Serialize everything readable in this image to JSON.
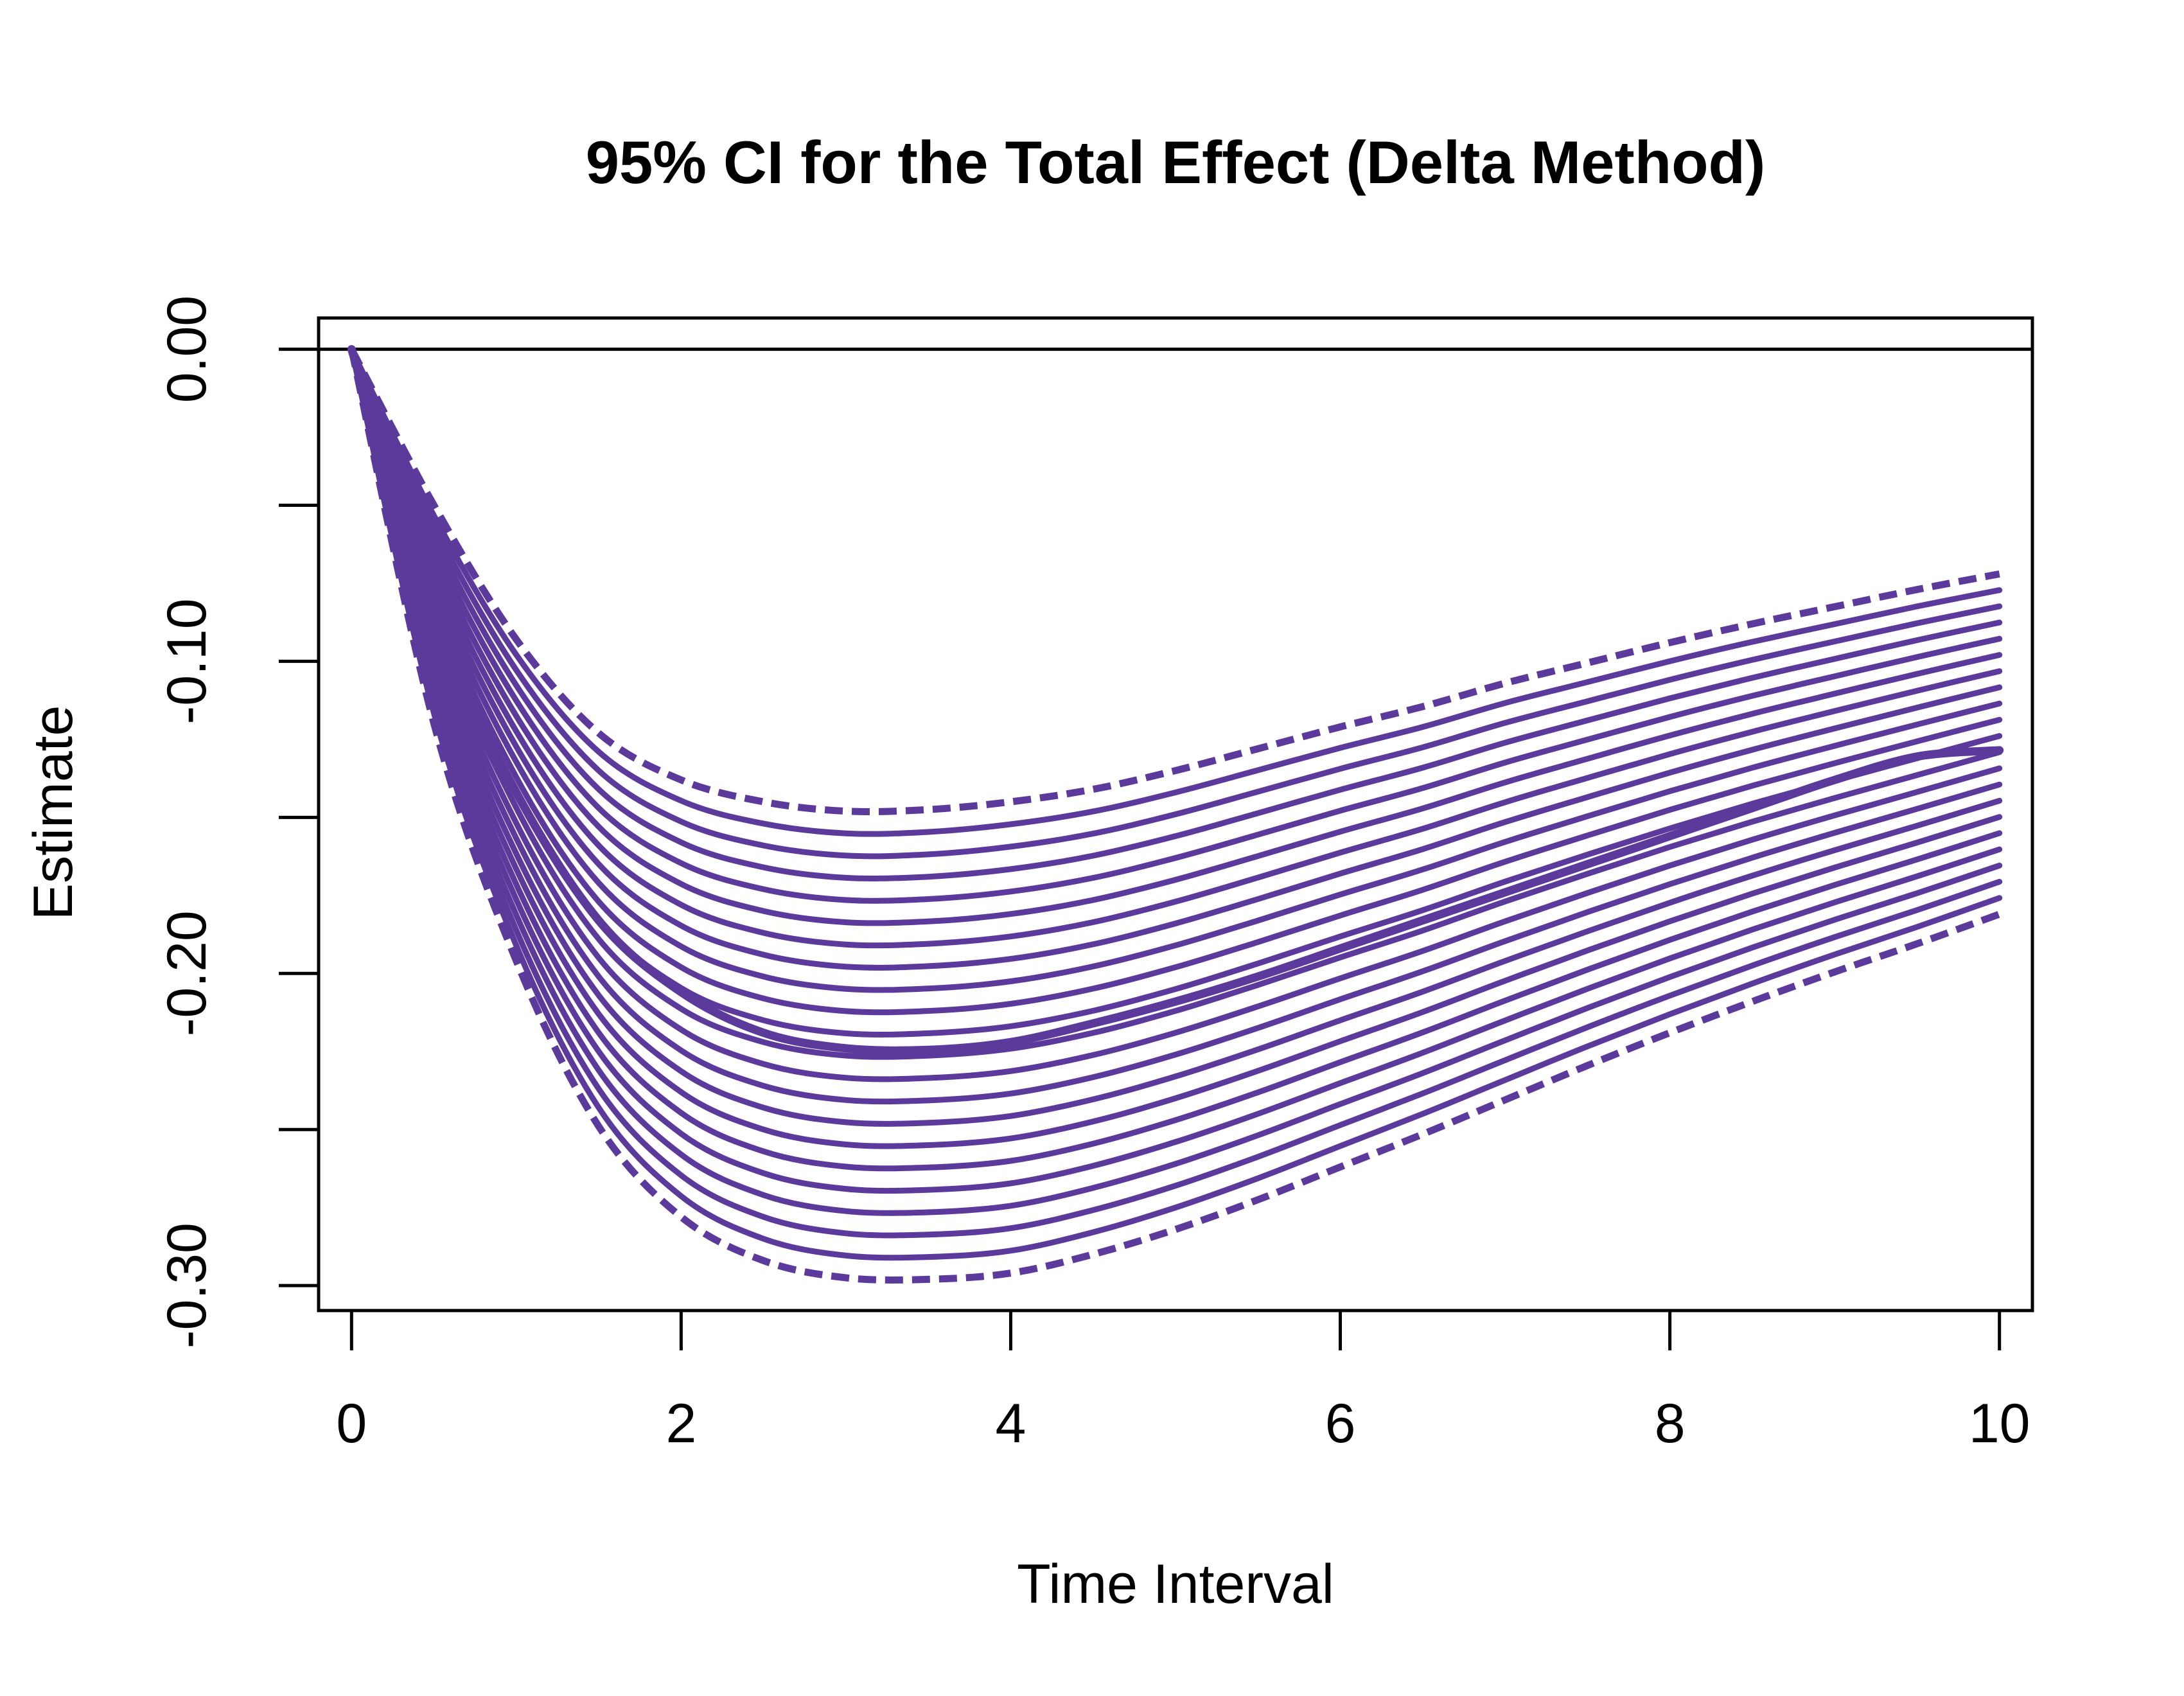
{
  "chart_data": {
    "type": "line",
    "title": "95% CI for the Total Effect (Delta Method)",
    "xlabel": "Time Interval",
    "ylabel": "Estimate",
    "xlim": [
      -0.2,
      10.2
    ],
    "ylim": [
      -0.308,
      0.01
    ],
    "x_ticks": [
      0,
      2,
      4,
      6,
      8,
      10
    ],
    "x_tick_labels": [
      "0",
      "2",
      "4",
      "6",
      "8",
      "10"
    ],
    "y_ticks": [
      0,
      -0.05,
      -0.1,
      -0.15,
      -0.2,
      -0.25,
      -0.3
    ],
    "y_tick_labels": [
      "0.00",
      "",
      "-0.10",
      "",
      "-0.20",
      "",
      "-0.30"
    ],
    "reference_line": 0,
    "grid": false,
    "legend": "none",
    "color": "#5B3A9B",
    "interval_steps": 21,
    "series": [
      {
        "role": "estimate",
        "style": "solid-thick",
        "x": [
          0,
          0.5,
          1,
          1.5,
          2,
          2.5,
          3,
          3.5,
          4,
          4.5,
          5,
          5.5,
          6,
          6.5,
          7,
          7.5,
          8,
          8.5,
          9,
          9.5,
          10
        ],
        "y": [
          0,
          -0.085,
          -0.142,
          -0.183,
          -0.206,
          -0.219,
          -0.224,
          -0.2245,
          -0.222,
          -0.216,
          -0.209,
          -0.201,
          -0.192,
          -0.183,
          -0.174,
          -0.165,
          -0.156,
          -0.147,
          -0.138,
          -0.1305,
          -0.1285
        ]
      },
      {
        "role": "upper",
        "style": "dashed",
        "x": [
          0,
          0.5,
          1,
          1.5,
          2,
          2.5,
          3,
          3.5,
          4,
          4.5,
          5,
          5.5,
          6,
          6.5,
          7,
          7.5,
          8,
          8.5,
          9,
          9.5,
          10
        ],
        "y": [
          0,
          -0.05,
          -0.093,
          -0.123,
          -0.138,
          -0.145,
          -0.148,
          -0.1475,
          -0.145,
          -0.141,
          -0.135,
          -0.128,
          -0.121,
          -0.1145,
          -0.107,
          -0.1005,
          -0.094,
          -0.088,
          -0.0825,
          -0.077,
          -0.072
        ]
      },
      {
        "role": "lower",
        "style": "dashed",
        "x": [
          0,
          0.5,
          1,
          1.5,
          2,
          2.5,
          3,
          3.5,
          4,
          4.5,
          5,
          5.5,
          6,
          6.5,
          7,
          7.5,
          8,
          8.5,
          9,
          9.5,
          10
        ],
        "y": [
          0,
          -0.12,
          -0.196,
          -0.249,
          -0.278,
          -0.292,
          -0.2975,
          -0.298,
          -0.296,
          -0.29,
          -0.282,
          -0.2725,
          -0.262,
          -0.2515,
          -0.2405,
          -0.2295,
          -0.219,
          -0.209,
          -0.1995,
          -0.1905,
          -0.181
        ]
      }
    ]
  }
}
